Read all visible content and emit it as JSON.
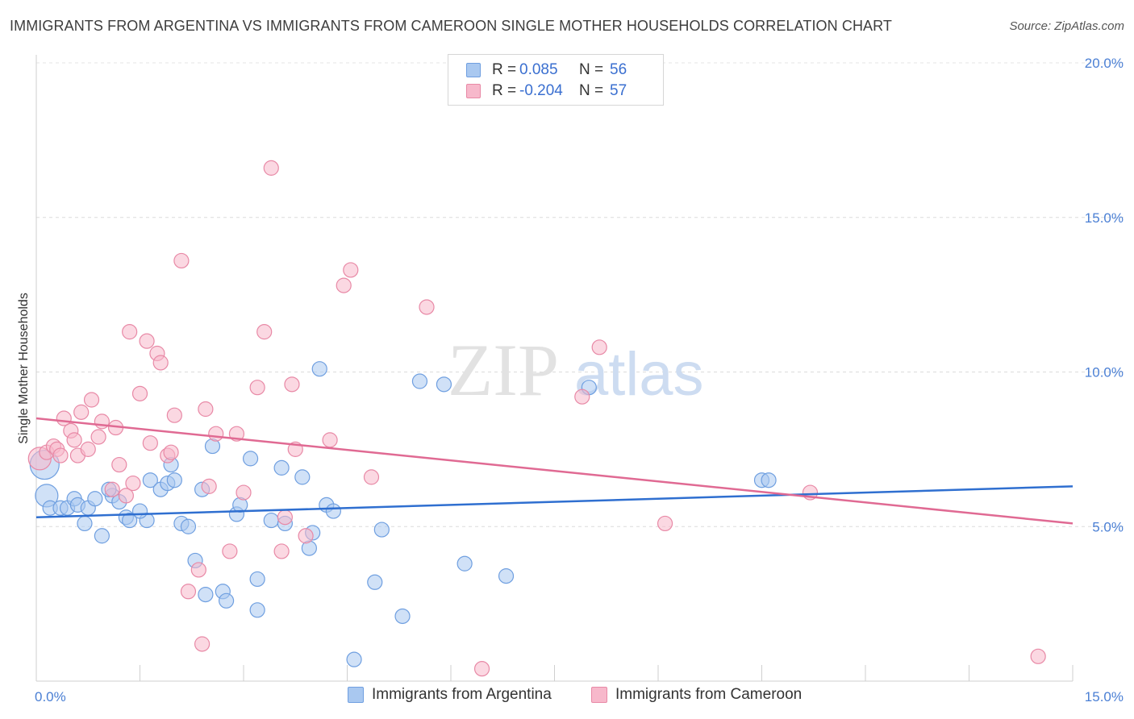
{
  "header": {
    "title": "IMMIGRANTS FROM ARGENTINA VS IMMIGRANTS FROM CAMEROON SINGLE MOTHER HOUSEHOLDS CORRELATION CHART",
    "source": "Source: ZipAtlas.com"
  },
  "watermark": {
    "zip": "ZIP",
    "atlas": "atlas"
  },
  "legend": {
    "rows": [
      {
        "r_label": "R =",
        "r_value": "0.085",
        "n_label": "N =",
        "n_value": "56",
        "color": "#a9c8f0",
        "stroke": "#6f9fe0"
      },
      {
        "r_label": "R =",
        "r_value": "-0.204",
        "n_label": "N =",
        "n_value": "57",
        "color": "#f7b8cb",
        "stroke": "#e889a6"
      }
    ]
  },
  "bottom_legend": {
    "items": [
      {
        "label": "Immigrants from Argentina",
        "color": "#a9c8f0",
        "stroke": "#6f9fe0"
      },
      {
        "label": "Immigrants from Cameroon",
        "color": "#f7b8cb",
        "stroke": "#e889a6"
      }
    ]
  },
  "chart_data": {
    "type": "scatter",
    "title": "IMMIGRANTS FROM ARGENTINA VS IMMIGRANTS FROM CAMEROON SINGLE MOTHER HOUSEHOLDS CORRELATION CHART",
    "xlabel": "",
    "ylabel": "Single Mother Households",
    "xlim": [
      0,
      15
    ],
    "ylim": [
      0,
      20
    ],
    "x_tick_labels": [
      "0.0%",
      "15.0%"
    ],
    "y_ticks": [
      5,
      10,
      15,
      20
    ],
    "y_tick_labels": [
      "5.0%",
      "10.0%",
      "15.0%",
      "20.0%"
    ],
    "grid": true,
    "series": [
      {
        "name": "Immigrants from Argentina",
        "color": "#a9c8f0",
        "stroke": "#6f9fe0",
        "trend": {
          "x": [
            0,
            15
          ],
          "y": [
            5.3,
            6.3
          ],
          "color": "#2f6fd0"
        },
        "points": [
          {
            "x": 0.12,
            "y": 7.0,
            "s": 18
          },
          {
            "x": 0.15,
            "y": 6.0,
            "s": 14
          },
          {
            "x": 0.2,
            "y": 5.6
          },
          {
            "x": 0.35,
            "y": 5.6
          },
          {
            "x": 0.45,
            "y": 5.6
          },
          {
            "x": 0.55,
            "y": 5.9
          },
          {
            "x": 0.6,
            "y": 5.7
          },
          {
            "x": 0.7,
            "y": 5.1
          },
          {
            "x": 0.75,
            "y": 5.6
          },
          {
            "x": 0.95,
            "y": 4.7
          },
          {
            "x": 0.85,
            "y": 5.9
          },
          {
            "x": 1.1,
            "y": 6.0
          },
          {
            "x": 1.2,
            "y": 5.8
          },
          {
            "x": 1.3,
            "y": 5.3
          },
          {
            "x": 1.35,
            "y": 5.2
          },
          {
            "x": 1.6,
            "y": 5.2
          },
          {
            "x": 1.65,
            "y": 6.5
          },
          {
            "x": 1.8,
            "y": 6.2
          },
          {
            "x": 1.9,
            "y": 6.4
          },
          {
            "x": 1.95,
            "y": 7.0
          },
          {
            "x": 2.0,
            "y": 6.5
          },
          {
            "x": 2.1,
            "y": 5.1
          },
          {
            "x": 2.2,
            "y": 5.0
          },
          {
            "x": 2.3,
            "y": 3.9
          },
          {
            "x": 2.4,
            "y": 6.2
          },
          {
            "x": 2.45,
            "y": 2.8
          },
          {
            "x": 2.55,
            "y": 7.6
          },
          {
            "x": 2.7,
            "y": 2.9
          },
          {
            "x": 2.75,
            "y": 2.6
          },
          {
            "x": 2.9,
            "y": 5.4
          },
          {
            "x": 2.95,
            "y": 5.7
          },
          {
            "x": 3.1,
            "y": 7.2
          },
          {
            "x": 3.2,
            "y": 3.3
          },
          {
            "x": 3.2,
            "y": 2.3
          },
          {
            "x": 3.4,
            "y": 5.2
          },
          {
            "x": 3.55,
            "y": 6.9
          },
          {
            "x": 3.6,
            "y": 5.1
          },
          {
            "x": 3.85,
            "y": 6.6
          },
          {
            "x": 3.95,
            "y": 4.3
          },
          {
            "x": 4.0,
            "y": 4.8
          },
          {
            "x": 4.1,
            "y": 10.1
          },
          {
            "x": 4.2,
            "y": 5.7
          },
          {
            "x": 4.3,
            "y": 5.5
          },
          {
            "x": 4.6,
            "y": 0.7
          },
          {
            "x": 4.9,
            "y": 3.2
          },
          {
            "x": 5.0,
            "y": 4.9
          },
          {
            "x": 5.3,
            "y": 2.1
          },
          {
            "x": 5.55,
            "y": 9.7
          },
          {
            "x": 5.9,
            "y": 9.6
          },
          {
            "x": 6.2,
            "y": 3.8
          },
          {
            "x": 6.8,
            "y": 3.4
          },
          {
            "x": 8.0,
            "y": 9.5
          },
          {
            "x": 10.5,
            "y": 6.5
          },
          {
            "x": 10.6,
            "y": 6.5
          },
          {
            "x": 1.5,
            "y": 5.5
          },
          {
            "x": 1.05,
            "y": 6.2
          }
        ]
      },
      {
        "name": "Immigrants from Cameroon",
        "color": "#f7b8cb",
        "stroke": "#e889a6",
        "trend": {
          "x": [
            0,
            15
          ],
          "y": [
            8.5,
            5.1
          ],
          "color": "#e06a93"
        },
        "points": [
          {
            "x": 0.05,
            "y": 7.2,
            "s": 14
          },
          {
            "x": 0.15,
            "y": 7.4
          },
          {
            "x": 0.25,
            "y": 7.6
          },
          {
            "x": 0.3,
            "y": 7.5
          },
          {
            "x": 0.35,
            "y": 7.3
          },
          {
            "x": 0.4,
            "y": 8.5
          },
          {
            "x": 0.5,
            "y": 8.1
          },
          {
            "x": 0.55,
            "y": 7.8
          },
          {
            "x": 0.6,
            "y": 7.3
          },
          {
            "x": 0.65,
            "y": 8.7
          },
          {
            "x": 0.75,
            "y": 7.5
          },
          {
            "x": 0.8,
            "y": 9.1
          },
          {
            "x": 0.9,
            "y": 7.9
          },
          {
            "x": 0.95,
            "y": 8.4
          },
          {
            "x": 1.15,
            "y": 8.2
          },
          {
            "x": 1.2,
            "y": 7.0
          },
          {
            "x": 1.1,
            "y": 6.2
          },
          {
            "x": 1.3,
            "y": 6.0
          },
          {
            "x": 1.35,
            "y": 11.3
          },
          {
            "x": 1.5,
            "y": 9.3
          },
          {
            "x": 1.6,
            "y": 11.0
          },
          {
            "x": 1.65,
            "y": 7.7
          },
          {
            "x": 1.75,
            "y": 10.6
          },
          {
            "x": 1.8,
            "y": 10.3
          },
          {
            "x": 1.9,
            "y": 7.3
          },
          {
            "x": 1.95,
            "y": 7.4
          },
          {
            "x": 2.0,
            "y": 8.6
          },
          {
            "x": 2.1,
            "y": 13.6
          },
          {
            "x": 2.2,
            "y": 2.9
          },
          {
            "x": 2.35,
            "y": 3.6
          },
          {
            "x": 2.4,
            "y": 1.2
          },
          {
            "x": 2.45,
            "y": 8.8
          },
          {
            "x": 2.5,
            "y": 6.3
          },
          {
            "x": 2.6,
            "y": 8.0
          },
          {
            "x": 2.8,
            "y": 4.2
          },
          {
            "x": 2.9,
            "y": 8.0
          },
          {
            "x": 3.0,
            "y": 6.1
          },
          {
            "x": 3.2,
            "y": 9.5
          },
          {
            "x": 3.3,
            "y": 11.3
          },
          {
            "x": 3.4,
            "y": 16.6
          },
          {
            "x": 3.55,
            "y": 4.2
          },
          {
            "x": 3.6,
            "y": 5.3
          },
          {
            "x": 3.7,
            "y": 9.6
          },
          {
            "x": 3.75,
            "y": 7.5
          },
          {
            "x": 3.9,
            "y": 4.7
          },
          {
            "x": 4.25,
            "y": 7.8
          },
          {
            "x": 4.45,
            "y": 12.8
          },
          {
            "x": 4.55,
            "y": 13.3
          },
          {
            "x": 4.85,
            "y": 6.6
          },
          {
            "x": 5.65,
            "y": 12.1
          },
          {
            "x": 6.45,
            "y": 0.4
          },
          {
            "x": 7.9,
            "y": 9.2
          },
          {
            "x": 8.15,
            "y": 10.8
          },
          {
            "x": 9.1,
            "y": 5.1
          },
          {
            "x": 11.2,
            "y": 6.1
          },
          {
            "x": 14.5,
            "y": 0.8
          },
          {
            "x": 1.4,
            "y": 6.4
          }
        ]
      }
    ]
  }
}
